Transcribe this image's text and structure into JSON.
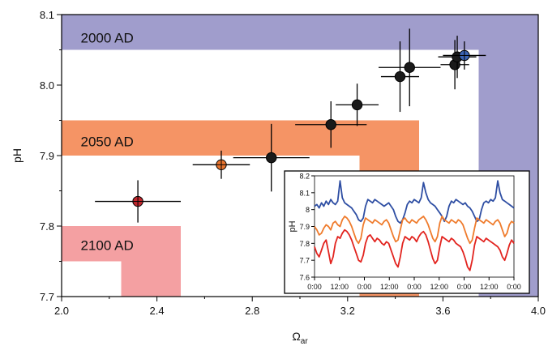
{
  "chart_data": [
    {
      "type": "scatter",
      "title": "",
      "xlabel": "Ω",
      "xlabel_sub": "ar",
      "ylabel": "pH",
      "xlim": [
        2.0,
        4.0
      ],
      "ylim": [
        7.7,
        8.1
      ],
      "xticks": [
        "2.0",
        "2.4",
        "2.8",
        "3.2",
        "3.6",
        "4.0"
      ],
      "yticks": [
        "7.7",
        "7.8",
        "7.9",
        "8.0",
        "8.1"
      ],
      "regions": [
        {
          "label": "2000 AD",
          "color": "#a09dcc",
          "outer": {
            "x": [
              2.0,
              4.0
            ],
            "y": [
              7.7,
              8.1
            ]
          },
          "inner": {
            "x": [
              2.0,
              3.75
            ],
            "y": [
              7.7,
              8.05
            ]
          }
        },
        {
          "label": "2050 AD",
          "color": "#f59465",
          "outer": {
            "x": [
              2.0,
              3.5
            ],
            "y": [
              7.7,
              7.95
            ]
          },
          "inner": {
            "x": [
              2.0,
              3.25
            ],
            "y": [
              7.7,
              7.9
            ]
          }
        },
        {
          "label": "2100 AD",
          "color": "#f4a0a2",
          "outer": {
            "x": [
              2.0,
              2.5
            ],
            "y": [
              7.7,
              7.8
            ]
          },
          "inner": {
            "x": [
              2.0,
              2.25
            ],
            "y": [
              7.7,
              7.75
            ]
          }
        }
      ],
      "points": [
        {
          "x": 2.32,
          "y": 7.835,
          "xerr": 0.18,
          "yerr": 0.03,
          "color": "#c0272d"
        },
        {
          "x": 2.67,
          "y": 7.887,
          "xerr": 0.12,
          "yerr": 0.02,
          "color": "#e8742e"
        },
        {
          "x": 2.88,
          "y": 7.897,
          "xerr": 0.16,
          "yerr": 0.048,
          "color": "#1a1a1a"
        },
        {
          "x": 3.13,
          "y": 7.944,
          "xerr": 0.15,
          "yerr": 0.033,
          "color": "#1a1a1a"
        },
        {
          "x": 3.24,
          "y": 7.972,
          "xerr": 0.09,
          "yerr": 0.03,
          "color": "#1a1a1a"
        },
        {
          "x": 3.42,
          "y": 8.012,
          "xerr": 0.08,
          "yerr": 0.05,
          "color": "#1a1a1a"
        },
        {
          "x": 3.46,
          "y": 8.025,
          "xerr": 0.13,
          "yerr": 0.055,
          "color": "#1a1a1a"
        },
        {
          "x": 3.65,
          "y": 8.029,
          "xerr": 0.06,
          "yerr": 0.035,
          "color": "#1a1a1a"
        },
        {
          "x": 3.66,
          "y": 8.04,
          "xerr": 0.08,
          "yerr": 0.03,
          "color": "#1a1a1a"
        },
        {
          "x": 3.69,
          "y": 8.042,
          "xerr": 0.09,
          "yerr": 0.02,
          "color": "#3b64b3"
        }
      ]
    },
    {
      "type": "line",
      "title": "",
      "xlabel": "",
      "ylabel": "pH",
      "ylim": [
        7.6,
        8.2
      ],
      "xticks": [
        "0:00",
        "12:00",
        "0:00",
        "12:00",
        "0:00",
        "12:00",
        "0:00",
        "12:00",
        "0:00"
      ],
      "yticks": [
        "7.6",
        "7.7",
        "7.8",
        "7.9",
        "8",
        "8.1",
        "8.2"
      ],
      "series": [
        {
          "color": "#2e4ea3",
          "values": [
            8.02,
            8.03,
            8.01,
            8.04,
            8.02,
            8.05,
            8.03,
            8.06,
            8.04,
            8.03,
            8.05,
            8.17,
            8.07,
            8.04,
            8.03,
            8.02,
            8.01,
            7.99,
            7.97,
            7.94,
            7.93,
            7.95,
            8.02,
            8.06,
            8.05,
            8.04,
            8.06,
            8.05,
            8.04,
            8.03,
            8.02,
            8.03,
            8.04,
            8.02,
            8.0,
            7.96,
            7.93,
            7.92,
            7.94,
            7.98,
            8.03,
            8.05,
            8.04,
            8.06,
            8.05,
            8.04,
            8.07,
            8.16,
            8.1,
            8.06,
            8.04,
            8.03,
            8.02,
            8.0,
            7.98,
            7.96,
            7.93,
            7.96,
            8.02,
            8.05,
            8.04,
            8.06,
            8.05,
            8.04,
            8.03,
            8.04,
            8.02,
            8.01,
            7.99,
            7.96,
            7.93,
            7.94,
            8.0,
            8.04,
            8.05,
            8.04,
            8.06,
            8.05,
            8.07,
            8.17,
            8.1,
            8.06,
            8.05,
            8.04,
            8.03,
            8.02,
            8.01
          ]
        },
        {
          "color": "#ef7b2c",
          "values": [
            7.9,
            7.88,
            7.85,
            7.86,
            7.89,
            7.91,
            7.9,
            7.88,
            7.92,
            7.93,
            7.91,
            7.9,
            7.94,
            7.96,
            7.95,
            7.93,
            7.9,
            7.86,
            7.82,
            7.8,
            7.83,
            7.91,
            7.95,
            7.94,
            7.93,
            7.92,
            7.94,
            7.93,
            7.92,
            7.91,
            7.93,
            7.94,
            7.92,
            7.88,
            7.84,
            7.81,
            7.82,
            7.88,
            7.94,
            7.95,
            7.93,
            7.92,
            7.94,
            7.93,
            7.92,
            7.94,
            7.95,
            7.96,
            7.94,
            7.91,
            7.87,
            7.83,
            7.81,
            7.84,
            7.92,
            7.96,
            7.94,
            7.93,
            7.92,
            7.94,
            7.93,
            7.92,
            7.94,
            7.93,
            7.91,
            7.87,
            7.83,
            7.8,
            7.82,
            7.89,
            7.95,
            7.94,
            7.93,
            7.92,
            7.94,
            7.93,
            7.92,
            7.91,
            7.93,
            7.94,
            7.92,
            7.88,
            7.84,
            7.86,
            7.91,
            7.93,
            7.92
          ]
        },
        {
          "color": "#e2241f",
          "values": [
            7.78,
            7.74,
            7.72,
            7.76,
            7.8,
            7.82,
            7.75,
            7.68,
            7.72,
            7.8,
            7.84,
            7.83,
            7.86,
            7.88,
            7.87,
            7.85,
            7.82,
            7.78,
            7.74,
            7.7,
            7.69,
            7.73,
            7.8,
            7.84,
            7.85,
            7.83,
            7.81,
            7.83,
            7.82,
            7.8,
            7.79,
            7.81,
            7.8,
            7.76,
            7.72,
            7.68,
            7.66,
            7.72,
            7.8,
            7.84,
            7.83,
            7.82,
            7.84,
            7.83,
            7.81,
            7.84,
            7.86,
            7.87,
            7.85,
            7.81,
            7.76,
            7.71,
            7.68,
            7.7,
            7.78,
            7.84,
            7.83,
            7.82,
            7.81,
            7.83,
            7.82,
            7.8,
            7.79,
            7.78,
            7.75,
            7.71,
            7.66,
            7.64,
            7.7,
            7.79,
            7.84,
            7.83,
            7.82,
            7.81,
            7.83,
            7.82,
            7.81,
            7.8,
            7.79,
            7.78,
            7.76,
            7.72,
            7.7,
            7.74,
            7.79,
            7.82,
            7.8
          ]
        }
      ]
    }
  ]
}
